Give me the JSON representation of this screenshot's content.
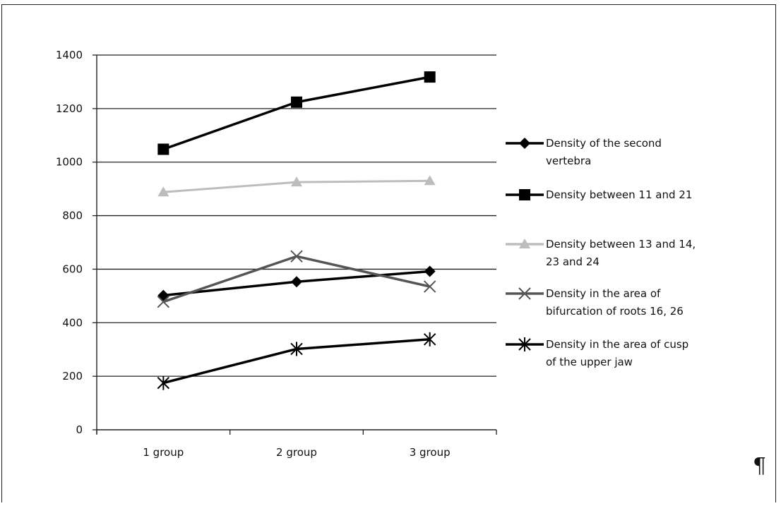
{
  "chart_data": {
    "type": "line",
    "categories": [
      "1 group",
      "2 group",
      "3 group"
    ],
    "ylim": [
      0,
      1400
    ],
    "yticks": [
      0,
      200,
      400,
      600,
      800,
      1000,
      1200,
      1400
    ],
    "grid": true,
    "legend_position": "right",
    "series": [
      {
        "name": "Density of the second vertebra",
        "values": [
          502,
          553,
          592
        ],
        "color": "#000000",
        "marker": "diamond"
      },
      {
        "name": "Density between 11 and 21",
        "values": [
          1048,
          1224,
          1318
        ],
        "color": "#000000",
        "marker": "square"
      },
      {
        "name": "Density between 13 and 14, 23 and 24",
        "values": [
          888,
          925,
          930
        ],
        "color": "#bdbdbd",
        "marker": "triangle"
      },
      {
        "name": "Density in the area of bifurcation of roots 16, 26",
        "values": [
          478,
          648,
          535
        ],
        "color": "#555555",
        "marker": "x"
      },
      {
        "name": "Density in the area of cusp of the upper jaw",
        "values": [
          175,
          302,
          338
        ],
        "color": "#000000",
        "marker": "star"
      }
    ]
  },
  "page": {
    "pilcrow": "¶"
  }
}
